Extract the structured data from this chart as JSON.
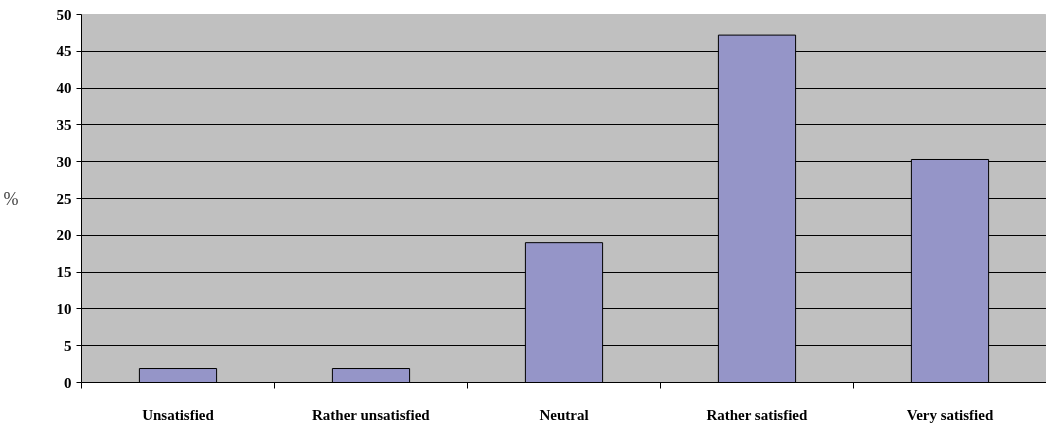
{
  "chart_data": {
    "type": "bar",
    "ylabel": "%",
    "categories": [
      "Unsatisfied",
      "Rather unsatisfied",
      "Neutral",
      "Rather satisfied",
      "Very satisfied"
    ],
    "values": [
      1.9,
      1.9,
      19,
      47.2,
      30.3
    ],
    "color": "#9595c8",
    "ylim": [
      0,
      50
    ],
    "yticks": [
      0,
      5,
      10,
      15,
      20,
      25,
      30,
      35,
      40,
      45,
      50
    ],
    "grid": "y",
    "legend": false
  }
}
